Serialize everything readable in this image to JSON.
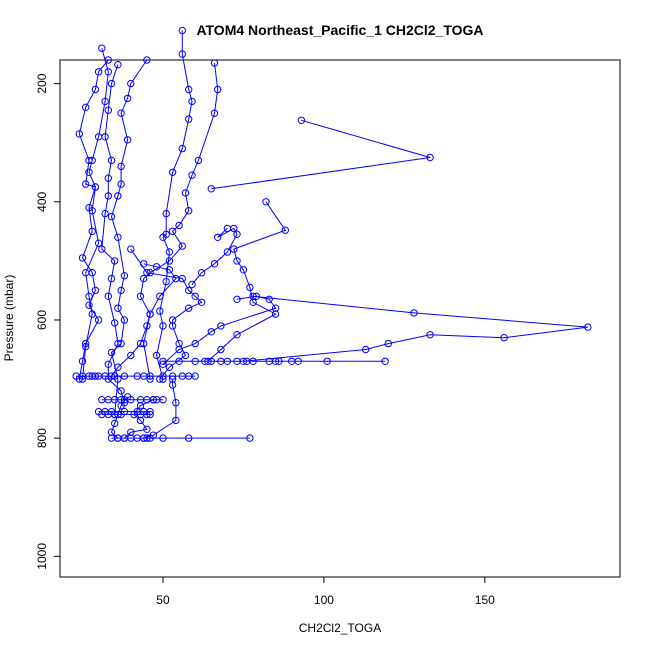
{
  "chart_data": {
    "type": "scatter",
    "title": "ATOM4 Northeast_Pacific_1 CH2Cl2_TOGA",
    "xlabel": "CH2Cl2_TOGA",
    "ylabel": "Pressure (mbar)",
    "xlim": [
      18,
      192
    ],
    "ylim": [
      1035,
      160
    ],
    "y_reversed": true,
    "grid": false,
    "legend": "none",
    "xticks": [
      50,
      100,
      150
    ],
    "yticks": [
      200,
      400,
      600,
      800,
      1000
    ],
    "xtick_labels": [
      "50",
      "100",
      "150"
    ],
    "ytick_labels": [
      "200",
      "400",
      "600",
      "800",
      "1000"
    ],
    "series_color": "#0000ff",
    "series": [
      {
        "points": [
          [
            33,
            160
          ],
          [
            30,
            180
          ],
          [
            29,
            210
          ],
          [
            26,
            240
          ],
          [
            24,
            285
          ],
          [
            27,
            330
          ],
          [
            26,
            370
          ],
          [
            29,
            375
          ],
          [
            27,
            410
          ],
          [
            28,
            450
          ],
          [
            25,
            495
          ],
          [
            28,
            520
          ],
          [
            29,
            550
          ],
          [
            27,
            575
          ],
          [
            30,
            600
          ],
          [
            26,
            640
          ],
          [
            25,
            670
          ],
          [
            24,
            700
          ]
        ]
      },
      {
        "points": [
          [
            36,
            168
          ],
          [
            34,
            200
          ],
          [
            33,
            245
          ],
          [
            32,
            290
          ],
          [
            34,
            330
          ],
          [
            33,
            360
          ],
          [
            33,
            390
          ],
          [
            32,
            420
          ],
          [
            31,
            480
          ],
          [
            35,
            500
          ],
          [
            34,
            530
          ],
          [
            33,
            560
          ],
          [
            35,
            605
          ],
          [
            36,
            640
          ],
          [
            33,
            675
          ],
          [
            33,
            700
          ],
          [
            37,
            720
          ],
          [
            38,
            740
          ]
        ]
      },
      {
        "points": [
          [
            45,
            160
          ],
          [
            40,
            200
          ],
          [
            39,
            225
          ],
          [
            37,
            250
          ],
          [
            39,
            295
          ],
          [
            37,
            340
          ],
          [
            37,
            370
          ],
          [
            36,
            390
          ],
          [
            34,
            425
          ],
          [
            36,
            460
          ],
          [
            38,
            525
          ],
          [
            37,
            550
          ],
          [
            36,
            580
          ],
          [
            38,
            600
          ],
          [
            37,
            640
          ],
          [
            34,
            655
          ],
          [
            36,
            700
          ],
          [
            35,
            760
          ]
        ]
      },
      {
        "points": [
          [
            31,
            140
          ],
          [
            33,
            180
          ],
          [
            32,
            230
          ],
          [
            30,
            290
          ],
          [
            28,
            330
          ],
          [
            27,
            350
          ],
          [
            29,
            375
          ],
          [
            28,
            415
          ],
          [
            30,
            470
          ],
          [
            26,
            520
          ],
          [
            27,
            560
          ],
          [
            28,
            590
          ],
          [
            26,
            645
          ],
          [
            25,
            700
          ]
        ]
      },
      {
        "points": [
          [
            56,
            110
          ],
          [
            56,
            150
          ],
          [
            58,
            210
          ],
          [
            59,
            230
          ],
          [
            58,
            260
          ],
          [
            56,
            310
          ],
          [
            53,
            350
          ],
          [
            51,
            420
          ],
          [
            51,
            455
          ],
          [
            50,
            460
          ],
          [
            52,
            485
          ],
          [
            51,
            535
          ],
          [
            49,
            585
          ],
          [
            50,
            610
          ],
          [
            48,
            660
          ],
          [
            50,
            700
          ]
        ]
      },
      {
        "points": [
          [
            66,
            165
          ],
          [
            67,
            210
          ],
          [
            66,
            250
          ],
          [
            61,
            330
          ],
          [
            59,
            355
          ],
          [
            57,
            385
          ],
          [
            58,
            415
          ],
          [
            55,
            440
          ],
          [
            53,
            450
          ],
          [
            56,
            475
          ],
          [
            52,
            500
          ],
          [
            46,
            520
          ],
          [
            44,
            530
          ],
          [
            43,
            560
          ],
          [
            46,
            590
          ],
          [
            44,
            640
          ],
          [
            46,
            700
          ]
        ]
      },
      {
        "points": [
          [
            93,
            262
          ],
          [
            133,
            325
          ],
          [
            65,
            378
          ]
        ]
      },
      {
        "points": [
          [
            82,
            400
          ],
          [
            88,
            448
          ],
          [
            72,
            480
          ],
          [
            73,
            500
          ],
          [
            75,
            515
          ],
          [
            77,
            545
          ],
          [
            78,
            570
          ],
          [
            85,
            590
          ],
          [
            73,
            625
          ],
          [
            68,
            650
          ],
          [
            64,
            670
          ]
        ]
      },
      {
        "points": [
          [
            70,
            445
          ],
          [
            67,
            460
          ],
          [
            72,
            445
          ],
          [
            73,
            455
          ],
          [
            70,
            485
          ],
          [
            66,
            505
          ],
          [
            62,
            520
          ],
          [
            59,
            540
          ]
        ]
      },
      {
        "points": [
          [
            78,
            560
          ],
          [
            128,
            588
          ],
          [
            182,
            612
          ],
          [
            156,
            630
          ],
          [
            133,
            625
          ],
          [
            120,
            640
          ],
          [
            113,
            650
          ],
          [
            75,
            670
          ]
        ]
      },
      {
        "points": [
          [
            40,
            480
          ],
          [
            45,
            520
          ],
          [
            56,
            530
          ],
          [
            58,
            550
          ],
          [
            60,
            560
          ],
          [
            62,
            570
          ],
          [
            58,
            580
          ],
          [
            53,
            600
          ],
          [
            53,
            610
          ],
          [
            55,
            640
          ],
          [
            57,
            660
          ],
          [
            52,
            680
          ],
          [
            49,
            700
          ]
        ]
      },
      {
        "points": [
          [
            73,
            565
          ],
          [
            79,
            560
          ],
          [
            83,
            565
          ],
          [
            85,
            580
          ],
          [
            68,
            610
          ],
          [
            65,
            620
          ],
          [
            60,
            640
          ],
          [
            55,
            650
          ],
          [
            50,
            675
          ]
        ]
      },
      {
        "points": [
          [
            44,
            505
          ],
          [
            48,
            510
          ],
          [
            52,
            515
          ],
          [
            54,
            530
          ],
          [
            49,
            560
          ],
          [
            46,
            590
          ],
          [
            45,
            610
          ],
          [
            43,
            640
          ],
          [
            40,
            660
          ],
          [
            36,
            680
          ],
          [
            34,
            695
          ]
        ]
      },
      {
        "points": [
          [
            50,
            670
          ],
          [
            55,
            670
          ],
          [
            60,
            670
          ],
          [
            63,
            670
          ],
          [
            65,
            670
          ],
          [
            68,
            670
          ],
          [
            70,
            670
          ],
          [
            73,
            670
          ],
          [
            76,
            670
          ],
          [
            78,
            670
          ],
          [
            83,
            670
          ],
          [
            85,
            670
          ],
          [
            86,
            670
          ],
          [
            90,
            670
          ],
          [
            92,
            670
          ],
          [
            101,
            670
          ],
          [
            119,
            670
          ]
        ]
      },
      {
        "points": [
          [
            23,
            695
          ],
          [
            25,
            695
          ],
          [
            27,
            695
          ],
          [
            28,
            695
          ],
          [
            29,
            695
          ],
          [
            30,
            695
          ],
          [
            32,
            695
          ],
          [
            35,
            695
          ],
          [
            38,
            695
          ],
          [
            42,
            695
          ],
          [
            44,
            695
          ],
          [
            46,
            695
          ],
          [
            50,
            695
          ],
          [
            53,
            695
          ],
          [
            56,
            695
          ],
          [
            58,
            695
          ],
          [
            60,
            695
          ]
        ]
      },
      {
        "points": [
          [
            31,
            735
          ],
          [
            33,
            735
          ],
          [
            35,
            735
          ],
          [
            37,
            735
          ],
          [
            38,
            735
          ],
          [
            40,
            735
          ],
          [
            43,
            735
          ],
          [
            45,
            735
          ],
          [
            47,
            735
          ],
          [
            48,
            735
          ],
          [
            50,
            735
          ]
        ]
      },
      {
        "points": [
          [
            30,
            755
          ],
          [
            32,
            755
          ],
          [
            34,
            755
          ],
          [
            38,
            755
          ],
          [
            42,
            755
          ],
          [
            44,
            755
          ],
          [
            46,
            755
          ]
        ]
      },
      {
        "points": [
          [
            31,
            760
          ],
          [
            33,
            760
          ],
          [
            35,
            760
          ],
          [
            37,
            760
          ],
          [
            43,
            760
          ],
          [
            45,
            760
          ],
          [
            46,
            760
          ]
        ]
      },
      {
        "points": [
          [
            34,
            800
          ],
          [
            36,
            800
          ],
          [
            38,
            800
          ],
          [
            40,
            800
          ],
          [
            42,
            800
          ],
          [
            44,
            800
          ],
          [
            45,
            800
          ],
          [
            46,
            800
          ],
          [
            50,
            800
          ],
          [
            58,
            800
          ],
          [
            77,
            800
          ]
        ]
      },
      {
        "points": [
          [
            47,
            735
          ],
          [
            43,
            745
          ],
          [
            41,
            760
          ],
          [
            43,
            770
          ],
          [
            45,
            785
          ],
          [
            40,
            790
          ],
          [
            38,
            800
          ]
        ]
      },
      {
        "points": [
          [
            53,
            700
          ],
          [
            53,
            710
          ],
          [
            54,
            740
          ],
          [
            54,
            770
          ],
          [
            47,
            795
          ],
          [
            44,
            800
          ]
        ]
      },
      {
        "points": [
          [
            39,
            730
          ],
          [
            37,
            745
          ],
          [
            36,
            760
          ],
          [
            35,
            775
          ],
          [
            34,
            790
          ],
          [
            36,
            800
          ]
        ]
      }
    ]
  }
}
